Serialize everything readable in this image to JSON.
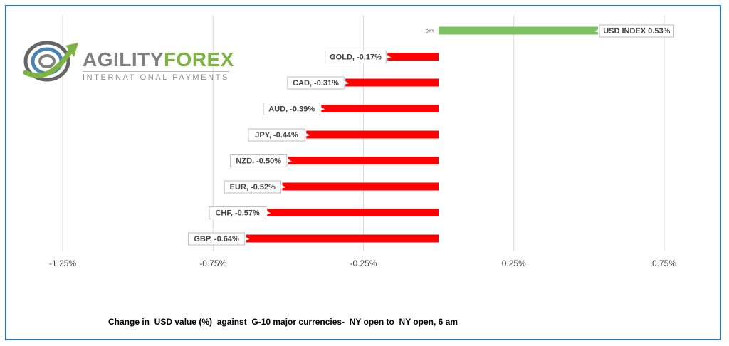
{
  "logo": {
    "word_part1": "AGILITY",
    "word_part2": "FOREX",
    "subtitle": "INTERNATIONAL PAYMENTS"
  },
  "caption": "Change in  USD value (%)  against  G-10 major currencies-  NY open to  NY open, 6 am",
  "colors": {
    "positive": "#7cc263",
    "negative": "#ff0000",
    "frame": "#2e75b6",
    "grid": "#d9d9d9"
  },
  "chart_data": {
    "type": "bar",
    "orientation": "horizontal",
    "categories": [
      "DXY",
      "GOLD",
      "CAD",
      "AUD",
      "JPY",
      "NZD",
      "EUR",
      "CHF",
      "GBP"
    ],
    "values": [
      0.53,
      -0.17,
      -0.31,
      -0.39,
      -0.44,
      -0.5,
      -0.52,
      -0.57,
      -0.64
    ],
    "data_labels": [
      "USD INDEX 0.53%",
      "GOLD, -0.17%",
      "CAD, -0.31%",
      "AUD, -0.39%",
      "JPY, -0.44%",
      "NZD, -0.50%",
      "EUR, -0.52%",
      "CHF, -0.57%",
      "GBP, -0.64%"
    ],
    "category_label_visible": "DXY",
    "x_ticks": [
      -1.25,
      -0.75,
      -0.25,
      0.25,
      0.75
    ],
    "x_tick_labels": [
      "-1.25%",
      "-0.75%",
      "-0.25%",
      "0.25%",
      "0.75%"
    ],
    "xlim": [
      -1.25,
      0.75
    ],
    "grid": true,
    "legend": false,
    "title": "",
    "xlabel": "",
    "ylabel": ""
  }
}
